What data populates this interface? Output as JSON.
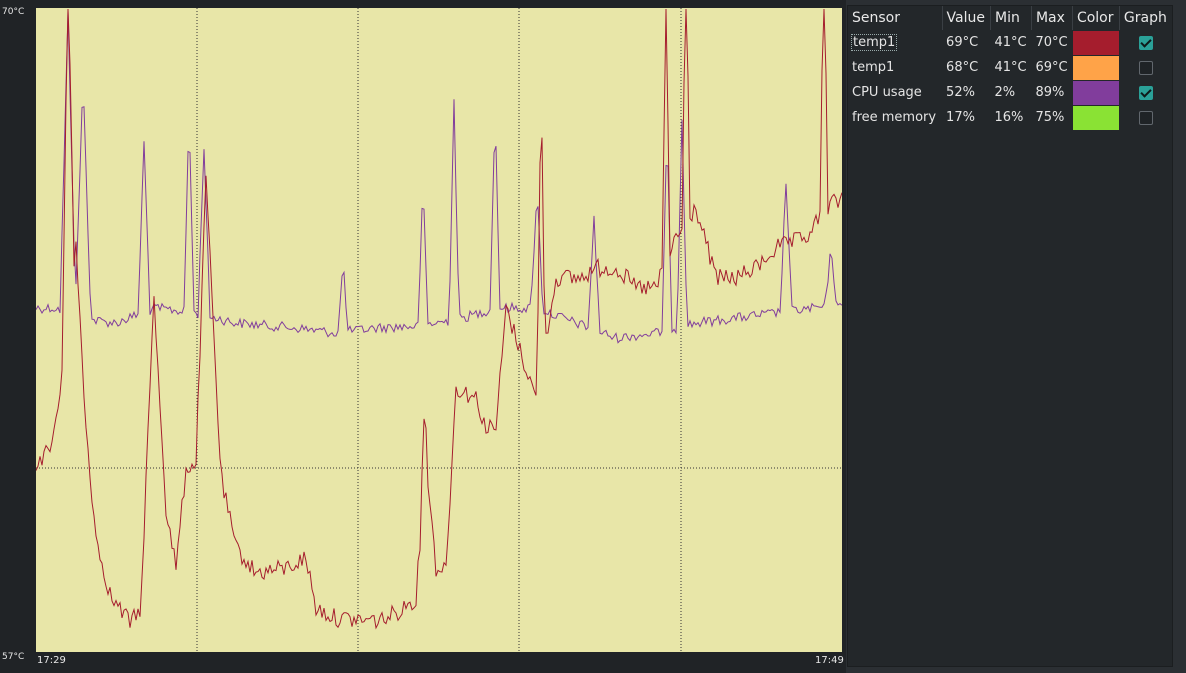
{
  "graph": {
    "y_max_label": "70°C",
    "y_min_label": "57°C",
    "x_start_label": "17:29",
    "x_end_label": "17:49",
    "background": "#e8e6a8",
    "grid_color": "#333333"
  },
  "table": {
    "headers": {
      "sensor": "Sensor",
      "value": "Value",
      "min": "Min",
      "max": "Max",
      "color": "Color",
      "graph": "Graph"
    },
    "rows": [
      {
        "name": "temp1",
        "value": "69°C",
        "min": "41°C",
        "max": "70°C",
        "color": "#a51d2d",
        "graph": true
      },
      {
        "name": "temp1",
        "value": "68°C",
        "min": "41°C",
        "max": "69°C",
        "color": "#ffa348",
        "graph": false
      },
      {
        "name": "CPU usage",
        "value": "52%",
        "min": "2%",
        "max": "89%",
        "color": "#813d9c",
        "graph": true
      },
      {
        "name": "free memory",
        "value": "17%",
        "min": "16%",
        "max": "75%",
        "color": "#8ae234",
        "graph": false
      }
    ]
  }
}
